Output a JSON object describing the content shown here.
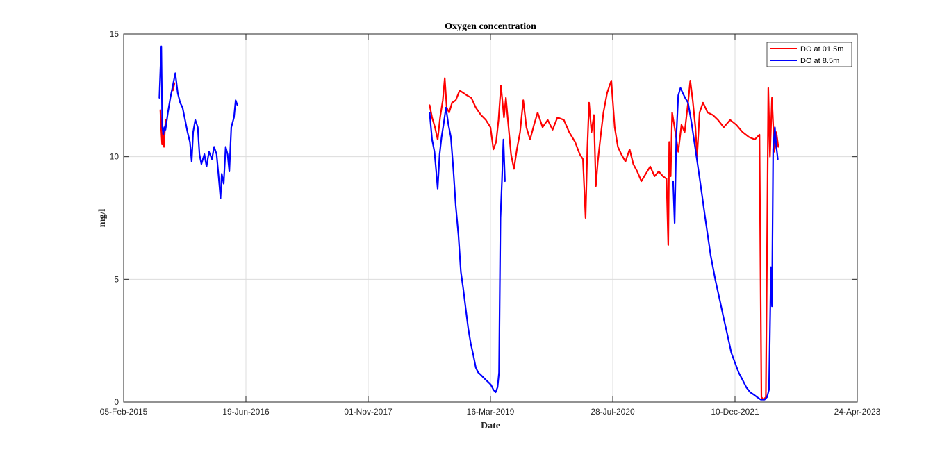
{
  "chart_data": {
    "type": "line",
    "title": "Oxygen concentration",
    "xlabel": "Date",
    "ylabel": "mg/l",
    "x_is_date": true,
    "xlim": [
      "2015-02-05",
      "2023-04-24"
    ],
    "ylim": [
      0,
      15
    ],
    "x_ticks": [
      "2015-02-05",
      "2016-06-19",
      "2017-11-01",
      "2019-03-16",
      "2020-07-28",
      "2021-12-10",
      "2023-04-24"
    ],
    "x_tick_labels": [
      "05-Feb-2015",
      "19-Jun-2016",
      "01-Nov-2017",
      "16-Mar-2019",
      "28-Jul-2020",
      "10-Dec-2021",
      "24-Apr-2023"
    ],
    "y_ticks": [
      0,
      5,
      10,
      15
    ],
    "y_tick_labels": [
      "0",
      "5",
      "10",
      "15"
    ],
    "grid": true,
    "legend_position": "top-right",
    "series": [
      {
        "name": "DO at 01.5m",
        "color": "#ff0000",
        "segments": [
          [
            [
              "2015-07-05",
              11.9
            ],
            [
              "2015-07-08",
              11.2
            ],
            [
              "2015-07-12",
              10.5
            ],
            [
              "2015-07-16",
              11.0
            ],
            [
              "2015-07-20",
              10.4
            ],
            [
              "2015-07-24",
              11.2
            ],
            [
              "2015-07-28",
              11.5
            ]
          ],
          [
            [
              "2015-08-25",
              12.7
            ],
            [
              "2015-09-01",
              13.0
            ]
          ],
          [
            [
              "2018-07-10",
              12.1
            ],
            [
              "2018-07-20",
              11.6
            ],
            [
              "2018-08-01",
              11.2
            ],
            [
              "2018-08-12",
              10.7
            ],
            [
              "2018-08-22",
              11.6
            ],
            [
              "2018-09-02",
              12.3
            ],
            [
              "2018-09-10",
              13.2
            ],
            [
              "2018-09-18",
              12.0
            ],
            [
              "2018-09-28",
              11.8
            ],
            [
              "2018-10-10",
              12.2
            ],
            [
              "2018-10-25",
              12.3
            ],
            [
              "2018-11-10",
              12.7
            ],
            [
              "2018-11-25",
              12.6
            ],
            [
              "2018-12-10",
              12.5
            ],
            [
              "2018-12-28",
              12.4
            ],
            [
              "2019-01-15",
              12.0
            ],
            [
              "2019-02-05",
              11.7
            ],
            [
              "2019-02-25",
              11.5
            ],
            [
              "2019-03-16",
              11.2
            ],
            [
              "2019-03-28",
              10.3
            ],
            [
              "2019-04-08",
              10.6
            ],
            [
              "2019-04-18",
              11.5
            ],
            [
              "2019-04-28",
              12.9
            ],
            [
              "2019-05-10",
              11.6
            ],
            [
              "2019-05-18",
              12.4
            ],
            [
              "2019-05-28",
              11.3
            ],
            [
              "2019-06-08",
              10.1
            ],
            [
              "2019-06-20",
              9.5
            ],
            [
              "2019-07-02",
              10.3
            ],
            [
              "2019-07-15",
              11.0
            ],
            [
              "2019-07-28",
              12.3
            ],
            [
              "2019-08-10",
              11.2
            ],
            [
              "2019-08-25",
              10.7
            ],
            [
              "2019-09-10",
              11.3
            ],
            [
              "2019-09-25",
              11.8
            ],
            [
              "2019-10-15",
              11.2
            ],
            [
              "2019-11-05",
              11.5
            ],
            [
              "2019-11-25",
              11.1
            ],
            [
              "2019-12-15",
              11.6
            ],
            [
              "2020-01-10",
              11.5
            ],
            [
              "2020-02-01",
              11.0
            ],
            [
              "2020-02-25",
              10.6
            ],
            [
              "2020-03-15",
              10.1
            ],
            [
              "2020-03-28",
              9.9
            ],
            [
              "2020-04-08",
              7.5
            ],
            [
              "2020-04-15",
              10.3
            ],
            [
              "2020-04-22",
              12.2
            ],
            [
              "2020-05-02",
              11.0
            ],
            [
              "2020-05-12",
              11.7
            ],
            [
              "2020-05-20",
              8.8
            ],
            [
              "2020-05-28",
              9.8
            ],
            [
              "2020-06-08",
              10.8
            ],
            [
              "2020-06-20",
              11.8
            ],
            [
              "2020-07-05",
              12.6
            ],
            [
              "2020-07-22",
              13.1
            ],
            [
              "2020-08-05",
              11.2
            ],
            [
              "2020-08-18",
              10.4
            ],
            [
              "2020-09-01",
              10.1
            ],
            [
              "2020-09-18",
              9.8
            ],
            [
              "2020-10-05",
              10.3
            ],
            [
              "2020-10-20",
              9.7
            ],
            [
              "2020-11-05",
              9.4
            ],
            [
              "2020-11-22",
              9.0
            ],
            [
              "2020-12-10",
              9.3
            ],
            [
              "2020-12-28",
              9.6
            ],
            [
              "2021-01-15",
              9.2
            ],
            [
              "2021-02-01",
              9.4
            ],
            [
              "2021-02-18",
              9.2
            ],
            [
              "2021-03-05",
              9.1
            ],
            [
              "2021-03-12",
              6.4
            ],
            [
              "2021-03-16",
              10.6
            ],
            [
              "2021-03-22",
              9.2
            ],
            [
              "2021-03-28",
              11.8
            ],
            [
              "2021-04-10",
              11.0
            ],
            [
              "2021-04-22",
              10.2
            ],
            [
              "2021-05-05",
              11.3
            ],
            [
              "2021-05-18",
              11.0
            ],
            [
              "2021-06-01",
              12.2
            ],
            [
              "2021-06-10",
              13.1
            ],
            [
              "2021-06-20",
              12.3
            ],
            [
              "2021-07-01",
              11.2
            ],
            [
              "2021-07-08",
              10.0
            ],
            [
              "2021-07-18",
              11.8
            ],
            [
              "2021-08-01",
              12.2
            ],
            [
              "2021-08-20",
              11.8
            ],
            [
              "2021-09-10",
              11.7
            ],
            [
              "2021-10-01",
              11.5
            ],
            [
              "2021-10-25",
              11.2
            ],
            [
              "2021-11-20",
              11.5
            ],
            [
              "2021-12-15",
              11.3
            ],
            [
              "2022-01-10",
              11.0
            ],
            [
              "2022-02-05",
              10.8
            ],
            [
              "2022-03-01",
              10.7
            ],
            [
              "2022-03-20",
              10.9
            ],
            [
              "2022-03-28",
              0.2
            ],
            [
              "2022-04-05",
              0.1
            ],
            [
              "2022-04-15",
              0.2
            ],
            [
              "2022-04-25",
              12.8
            ],
            [
              "2022-05-02",
              10.0
            ],
            [
              "2022-05-10",
              12.4
            ],
            [
              "2022-05-20",
              10.2
            ],
            [
              "2022-05-28",
              11.0
            ],
            [
              "2022-06-05",
              10.4
            ]
          ]
        ]
      },
      {
        "name": "DO at 8.5m",
        "color": "#0000ff",
        "segments": [
          [
            [
              "2015-07-01",
              12.4
            ],
            [
              "2015-07-05",
              13.5
            ],
            [
              "2015-07-09",
              14.5
            ],
            [
              "2015-07-13",
              11.2
            ],
            [
              "2015-07-17",
              10.9
            ],
            [
              "2015-07-21",
              11.2
            ],
            [
              "2015-07-26",
              11.1
            ],
            [
              "2015-08-05",
              11.8
            ],
            [
              "2015-08-15",
              12.4
            ],
            [
              "2015-08-25",
              12.9
            ],
            [
              "2015-09-04",
              13.4
            ],
            [
              "2015-09-14",
              12.6
            ],
            [
              "2015-09-24",
              12.2
            ],
            [
              "2015-10-04",
              12.0
            ],
            [
              "2015-10-14",
              11.5
            ],
            [
              "2015-10-24",
              11.0
            ],
            [
              "2015-11-03",
              10.6
            ],
            [
              "2015-11-10",
              9.8
            ],
            [
              "2015-11-16",
              11.0
            ],
            [
              "2015-11-25",
              11.5
            ],
            [
              "2015-12-05",
              11.2
            ],
            [
              "2015-12-12",
              10.1
            ],
            [
              "2015-12-20",
              9.7
            ],
            [
              "2016-01-01",
              10.1
            ],
            [
              "2016-01-10",
              9.6
            ],
            [
              "2016-01-20",
              10.2
            ],
            [
              "2016-02-01",
              9.9
            ],
            [
              "2016-02-10",
              10.4
            ],
            [
              "2016-02-20",
              10.1
            ],
            [
              "2016-03-01",
              9.0
            ],
            [
              "2016-03-07",
              8.3
            ],
            [
              "2016-03-12",
              9.3
            ],
            [
              "2016-03-20",
              8.9
            ],
            [
              "2016-03-28",
              10.4
            ],
            [
              "2016-04-05",
              10.1
            ],
            [
              "2016-04-12",
              9.4
            ],
            [
              "2016-04-20",
              11.2
            ],
            [
              "2016-05-01",
              11.6
            ],
            [
              "2016-05-08",
              12.3
            ],
            [
              "2016-05-15",
              12.1
            ]
          ],
          [
            [
              "2018-07-10",
              11.8
            ],
            [
              "2018-07-20",
              10.7
            ],
            [
              "2018-07-30",
              10.2
            ],
            [
              "2018-08-06",
              9.4
            ],
            [
              "2018-08-12",
              8.7
            ],
            [
              "2018-08-20",
              10.1
            ],
            [
              "2018-08-28",
              10.8
            ],
            [
              "2018-09-05",
              11.3
            ],
            [
              "2018-09-15",
              12.0
            ],
            [
              "2018-09-25",
              11.3
            ],
            [
              "2018-10-05",
              10.8
            ],
            [
              "2018-10-15",
              9.5
            ],
            [
              "2018-10-25",
              8.0
            ],
            [
              "2018-11-05",
              6.8
            ],
            [
              "2018-11-15",
              5.3
            ],
            [
              "2018-11-25",
              4.6
            ],
            [
              "2018-12-05",
              3.8
            ],
            [
              "2018-12-15",
              3.0
            ],
            [
              "2018-12-25",
              2.4
            ],
            [
              "2019-01-05",
              1.9
            ],
            [
              "2019-01-15",
              1.4
            ],
            [
              "2019-01-25",
              1.2
            ],
            [
              "2019-02-05",
              1.1
            ],
            [
              "2019-02-15",
              1.0
            ],
            [
              "2019-02-25",
              0.9
            ],
            [
              "2019-03-08",
              0.8
            ],
            [
              "2019-03-18",
              0.7
            ],
            [
              "2019-03-28",
              0.5
            ],
            [
              "2019-04-06",
              0.4
            ],
            [
              "2019-04-14",
              0.6
            ],
            [
              "2019-04-20",
              1.2
            ],
            [
              "2019-04-26",
              7.5
            ],
            [
              "2019-05-02",
              9.0
            ],
            [
              "2019-05-08",
              10.7
            ],
            [
              "2019-05-14",
              9.0
            ]
          ],
          [
            [
              "2021-04-01",
              9.0
            ],
            [
              "2021-04-07",
              7.3
            ],
            [
              "2021-04-14",
              10.8
            ],
            [
              "2021-04-22",
              12.5
            ],
            [
              "2021-05-01",
              12.8
            ],
            [
              "2021-05-10",
              12.6
            ],
            [
              "2021-05-20",
              12.4
            ],
            [
              "2021-06-01",
              12.2
            ],
            [
              "2021-06-15",
              11.4
            ],
            [
              "2021-07-01",
              10.3
            ],
            [
              "2021-07-20",
              9.0
            ],
            [
              "2021-08-10",
              7.5
            ],
            [
              "2021-09-01",
              6.0
            ],
            [
              "2021-09-20",
              5.0
            ],
            [
              "2021-10-10",
              4.1
            ],
            [
              "2021-10-25",
              3.4
            ],
            [
              "2021-11-10",
              2.7
            ],
            [
              "2021-11-25",
              2.0
            ],
            [
              "2021-12-10",
              1.6
            ],
            [
              "2021-12-25",
              1.2
            ],
            [
              "2022-01-10",
              0.9
            ],
            [
              "2022-01-25",
              0.6
            ],
            [
              "2022-02-10",
              0.4
            ],
            [
              "2022-02-25",
              0.3
            ],
            [
              "2022-03-10",
              0.2
            ],
            [
              "2022-03-25",
              0.1
            ],
            [
              "2022-04-10",
              0.1
            ],
            [
              "2022-04-20",
              0.2
            ],
            [
              "2022-04-28",
              0.5
            ],
            [
              "2022-05-06",
              5.5
            ],
            [
              "2022-05-10",
              3.9
            ],
            [
              "2022-05-15",
              10.3
            ],
            [
              "2022-05-22",
              11.2
            ],
            [
              "2022-05-28",
              10.4
            ],
            [
              "2022-06-03",
              9.9
            ]
          ]
        ]
      }
    ]
  }
}
